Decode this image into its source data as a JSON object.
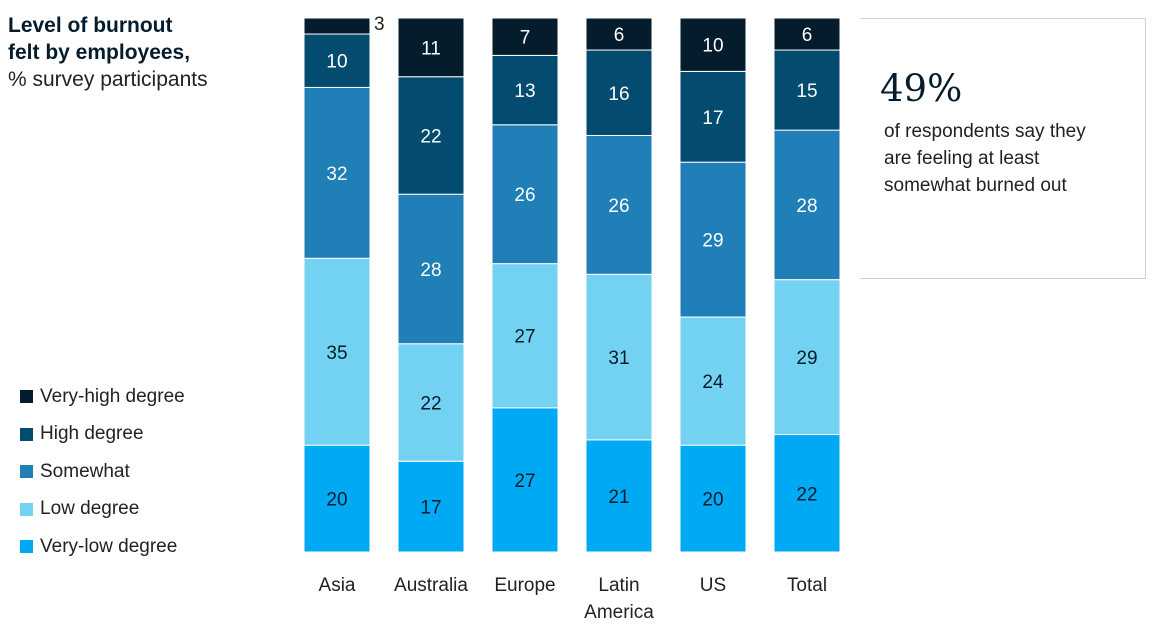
{
  "title": {
    "line1": "Level of burnout",
    "line2": "felt by employees,",
    "subtitle": "% survey participants"
  },
  "legend": [
    {
      "label": "Very-high degree",
      "color": "#051c2c"
    },
    {
      "label": "High degree",
      "color": "#034b6f"
    },
    {
      "label": "Somewhat",
      "color": "#1f7fb6"
    },
    {
      "label": "Low degree",
      "color": "#73d1f1"
    },
    {
      "label": "Very-low degree",
      "color": "#00a9f4"
    }
  ],
  "callout": {
    "value": "49%",
    "text": "of respondents say they are feeling at least somewhat burned out"
  },
  "chart_data": {
    "type": "bar",
    "stacked": true,
    "categories": [
      [
        "Asia"
      ],
      [
        "Australia"
      ],
      [
        "Europe"
      ],
      [
        "Latin",
        "America"
      ],
      [
        "US"
      ],
      [
        "Total"
      ]
    ],
    "series": [
      {
        "name": "Very-low degree",
        "color": "#00a9f4",
        "values": [
          20,
          17,
          27,
          21,
          20,
          22
        ]
      },
      {
        "name": "Low degree",
        "color": "#73d1f1",
        "values": [
          35,
          22,
          27,
          31,
          24,
          29
        ]
      },
      {
        "name": "Somewhat",
        "color": "#1f7fb6",
        "values": [
          32,
          28,
          26,
          26,
          29,
          28
        ]
      },
      {
        "name": "High degree",
        "color": "#034b6f",
        "values": [
          10,
          22,
          13,
          16,
          17,
          15
        ]
      },
      {
        "name": "Very-high degree",
        "color": "#051c2c",
        "values": [
          3,
          11,
          7,
          6,
          10,
          6
        ]
      }
    ],
    "ylim": [
      0,
      100
    ]
  }
}
